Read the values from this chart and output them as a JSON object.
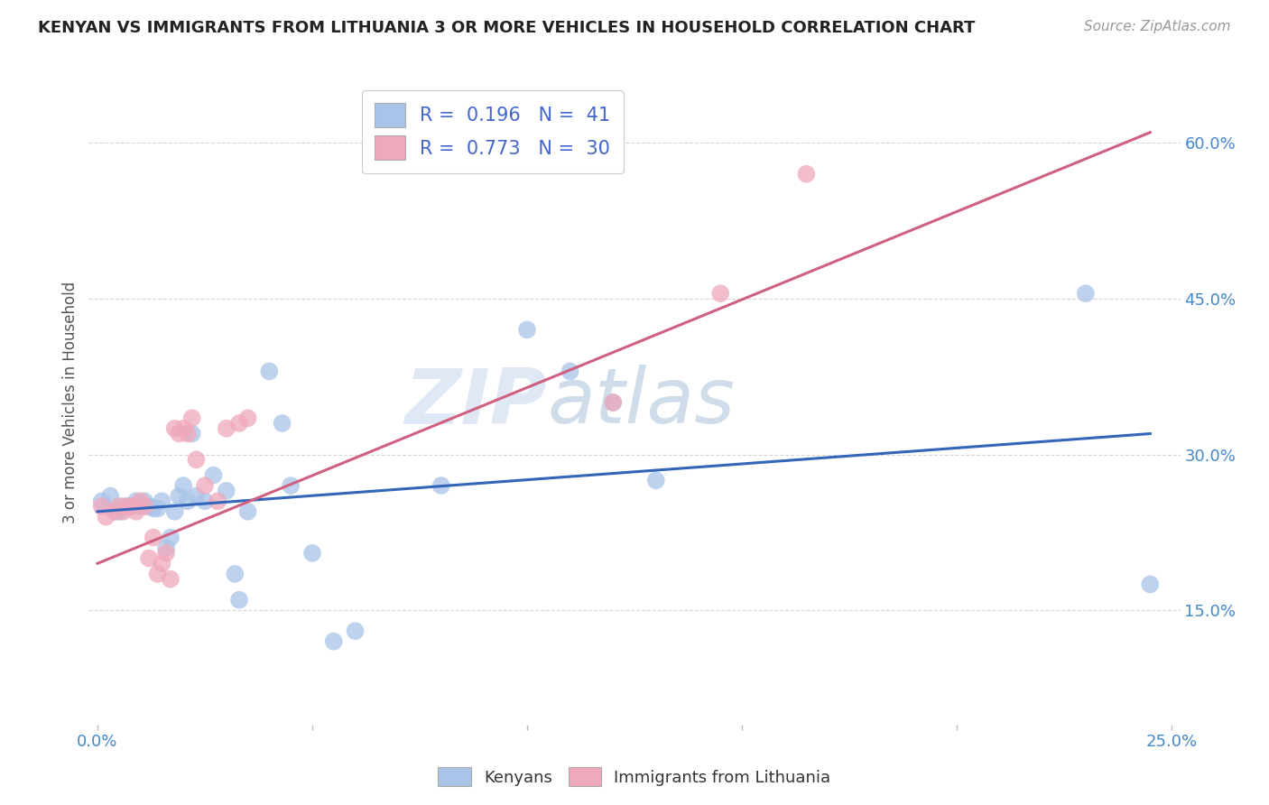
{
  "title": "KENYAN VS IMMIGRANTS FROM LITHUANIA 3 OR MORE VEHICLES IN HOUSEHOLD CORRELATION CHART",
  "source_text": "Source: ZipAtlas.com",
  "ylabel": "3 or more Vehicles in Household",
  "ytick_labels": [
    "15.0%",
    "30.0%",
    "45.0%",
    "60.0%"
  ],
  "ytick_values": [
    0.15,
    0.3,
    0.45,
    0.6
  ],
  "xlim": [
    -0.002,
    0.252
  ],
  "ylim": [
    0.04,
    0.66
  ],
  "blue_R": 0.196,
  "blue_N": 41,
  "pink_R": 0.773,
  "pink_N": 30,
  "watermark_zip": "ZIP",
  "watermark_atlas": "atlas",
  "blue_color": "#a8c4e8",
  "blue_line_color": "#3366bb",
  "pink_color": "#f0a8bc",
  "pink_line_color": "#d06080",
  "kenyan_x": [
    0.001,
    0.003,
    0.004,
    0.005,
    0.006,
    0.007,
    0.008,
    0.009,
    0.01,
    0.011,
    0.012,
    0.013,
    0.014,
    0.015,
    0.016,
    0.017,
    0.018,
    0.019,
    0.02,
    0.021,
    0.022,
    0.023,
    0.025,
    0.027,
    0.03,
    0.032,
    0.033,
    0.035,
    0.04,
    0.043,
    0.045,
    0.05,
    0.055,
    0.06,
    0.08,
    0.1,
    0.11,
    0.12,
    0.13,
    0.23,
    0.245
  ],
  "kenyan_y": [
    0.255,
    0.26,
    0.245,
    0.245,
    0.25,
    0.25,
    0.25,
    0.255,
    0.25,
    0.255,
    0.25,
    0.248,
    0.248,
    0.255,
    0.21,
    0.22,
    0.245,
    0.26,
    0.27,
    0.255,
    0.32,
    0.26,
    0.255,
    0.28,
    0.265,
    0.185,
    0.16,
    0.245,
    0.38,
    0.33,
    0.27,
    0.205,
    0.12,
    0.13,
    0.27,
    0.42,
    0.38,
    0.35,
    0.275,
    0.455,
    0.175
  ],
  "lithu_x": [
    0.001,
    0.002,
    0.004,
    0.005,
    0.006,
    0.007,
    0.008,
    0.009,
    0.01,
    0.011,
    0.012,
    0.013,
    0.014,
    0.015,
    0.016,
    0.017,
    0.018,
    0.019,
    0.02,
    0.021,
    0.022,
    0.023,
    0.025,
    0.028,
    0.03,
    0.033,
    0.035,
    0.12,
    0.145,
    0.165
  ],
  "lithu_y": [
    0.25,
    0.24,
    0.245,
    0.25,
    0.245,
    0.25,
    0.25,
    0.245,
    0.255,
    0.25,
    0.2,
    0.22,
    0.185,
    0.195,
    0.205,
    0.18,
    0.325,
    0.32,
    0.325,
    0.32,
    0.335,
    0.295,
    0.27,
    0.255,
    0.325,
    0.33,
    0.335,
    0.35,
    0.455,
    0.57
  ],
  "blue_line_x": [
    0.0,
    0.245
  ],
  "blue_line_y": [
    0.245,
    0.32
  ],
  "pink_line_x": [
    0.0,
    0.245
  ],
  "pink_line_y": [
    0.195,
    0.61
  ],
  "xtick_positions": [
    0.0,
    0.05,
    0.1,
    0.15,
    0.2,
    0.25
  ],
  "xtick_labels": [
    "0.0%",
    "",
    "",
    "",
    "",
    "25.0%"
  ],
  "background_color": "#ffffff",
  "grid_color": "#cccccc",
  "tick_color": "#4488cc",
  "legend_text_color": "#4466cc",
  "title_fontsize": 13,
  "source_fontsize": 11,
  "tick_fontsize": 13,
  "ylabel_fontsize": 12
}
